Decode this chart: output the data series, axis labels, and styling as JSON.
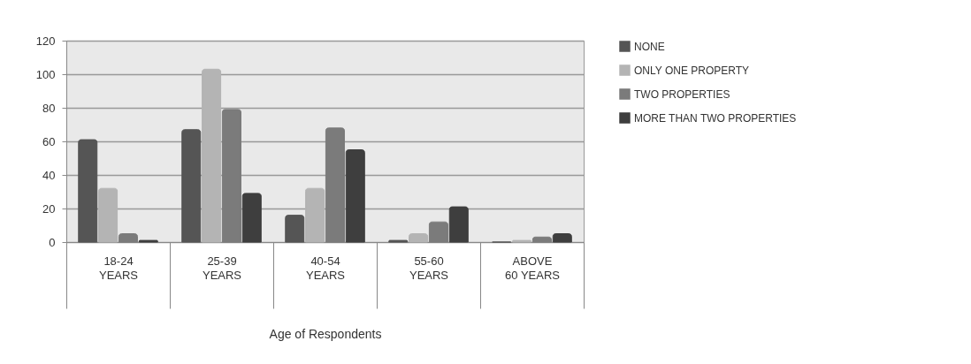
{
  "chart_data": {
    "type": "bar",
    "xlabel": "Age of Respondents",
    "categories": [
      "18-24 YEARS",
      "25-39 YEARS",
      "40-54 YEARS",
      "55-60 YEARS",
      "ABOVE 60 YEARS"
    ],
    "series": [
      {
        "name": "NONE",
        "color": "#555555",
        "values": [
          61,
          67,
          16,
          1,
          0
        ]
      },
      {
        "name": "ONLY ONE PROPERTY",
        "color": "#b4b4b4",
        "values": [
          32,
          103,
          32,
          5,
          1
        ]
      },
      {
        "name": "TWO PROPERTIES",
        "color": "#7b7b7b",
        "values": [
          5,
          79,
          68,
          12,
          3
        ]
      },
      {
        "name": "MORE THAN TWO PROPERTIES",
        "color": "#3e3e3e",
        "values": [
          1,
          29,
          55,
          21,
          5
        ]
      }
    ],
    "ylim": [
      0,
      120
    ],
    "yticks": [
      0,
      20,
      40,
      60,
      80,
      100,
      120
    ],
    "grid": "y",
    "legend": "right"
  }
}
